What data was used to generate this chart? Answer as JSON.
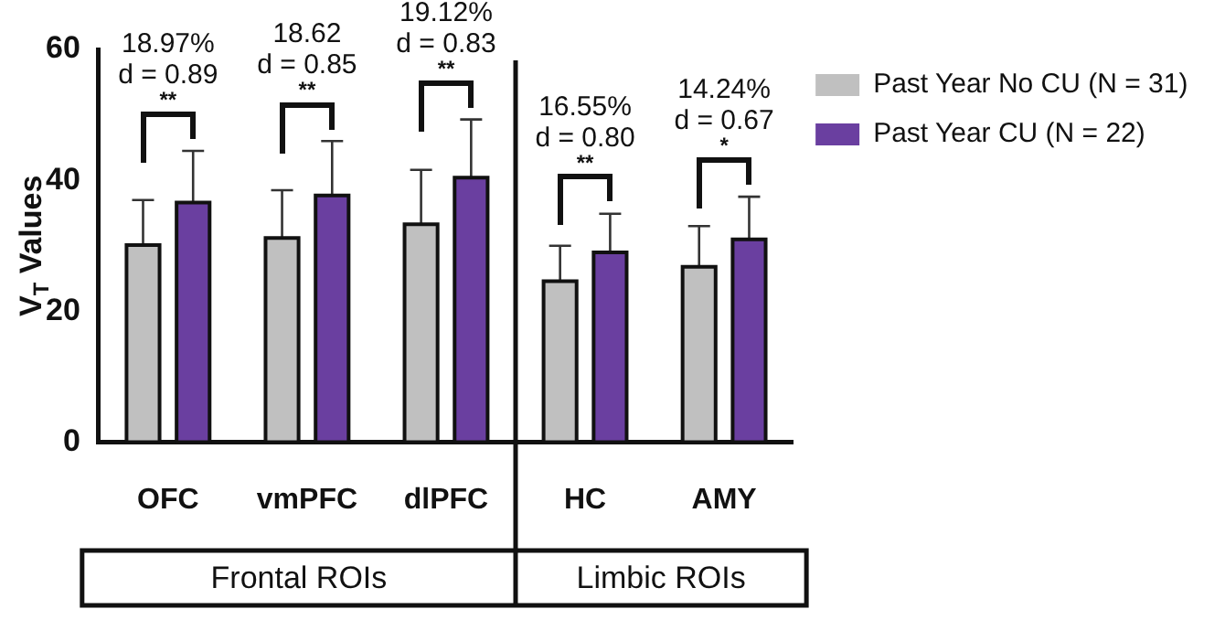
{
  "chart_data": {
    "type": "bar",
    "ylabel": "V$_{T}$ Values",
    "categories": [
      "OFC",
      "vmPFC",
      "dlPFC",
      "HC",
      "AMY"
    ],
    "series": [
      {
        "name": "Past Year No CU (N = 31)",
        "color": "#c0c0c0",
        "values": [
          30.1,
          31.2,
          33.3,
          24.6,
          26.8
        ],
        "errors": [
          [
            30.1,
            37.0
          ],
          [
            31.2,
            38.5
          ],
          [
            33.3,
            41.6
          ],
          [
            24.6,
            30.0
          ],
          [
            26.8,
            33.0
          ]
        ]
      },
      {
        "name": "Past Year CU (N = 22)",
        "color": "#6a3fa0",
        "values": [
          36.6,
          37.7,
          40.4,
          29.0,
          31.0
        ],
        "errors": [
          [
            36.6,
            44.5
          ],
          [
            37.7,
            46.0
          ],
          [
            40.4,
            49.3
          ],
          [
            29.0,
            34.9
          ],
          [
            31.0,
            37.5
          ]
        ]
      }
    ],
    "ylim": [
      0,
      60
    ],
    "yticks": [
      0,
      20,
      40,
      60
    ],
    "grid": false,
    "legend": "top right",
    "annotations": [
      "18.97%\nd = 0.89\n**",
      "18.62\nd = 0.85\n**",
      "19.12%\nd = 0.83\n**",
      "16.55%\nd = 0.80\n**",
      "14.24%\nd = 0.67\n*",
      "Frontal ROIs",
      "Limbic ROIs"
    ]
  }
}
